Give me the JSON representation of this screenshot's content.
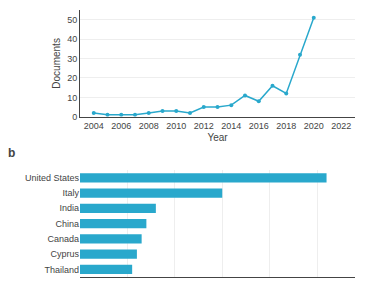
{
  "chart_data": [
    {
      "type": "line",
      "x": [
        2004,
        2005,
        2006,
        2007,
        2008,
        2009,
        2010,
        2011,
        2012,
        2013,
        2014,
        2015,
        2016,
        2017,
        2018,
        2019,
        2020
      ],
      "values": [
        2,
        1,
        1,
        1,
        2,
        3,
        3,
        2,
        5,
        5,
        6,
        11,
        8,
        16,
        12,
        32,
        51
      ],
      "color": "#29a8cc",
      "marker": "circle",
      "xlabel": "Year",
      "ylabel": "Documents",
      "xlim": [
        2003,
        2023
      ],
      "ylim": [
        0,
        55
      ],
      "xticks": [
        2004,
        2006,
        2008,
        2010,
        2012,
        2014,
        2016,
        2018,
        2020,
        2022
      ],
      "yticks": [
        0,
        10,
        20,
        30,
        40,
        50
      ],
      "grid": "y"
    },
    {
      "type": "bar",
      "orientation": "horizontal",
      "categories": [
        "United States",
        "Italy",
        "India",
        "China",
        "Canada",
        "Cyprus",
        "Thailand"
      ],
      "values": [
        52,
        30,
        16,
        14,
        13,
        12,
        11
      ],
      "color": "#29a8cc",
      "xlim": [
        0,
        58
      ],
      "xticks": [
        0,
        10,
        20,
        30,
        40,
        50
      ],
      "grid": "x",
      "tick_labels": "y",
      "annotations": [
        "b"
      ]
    }
  ]
}
